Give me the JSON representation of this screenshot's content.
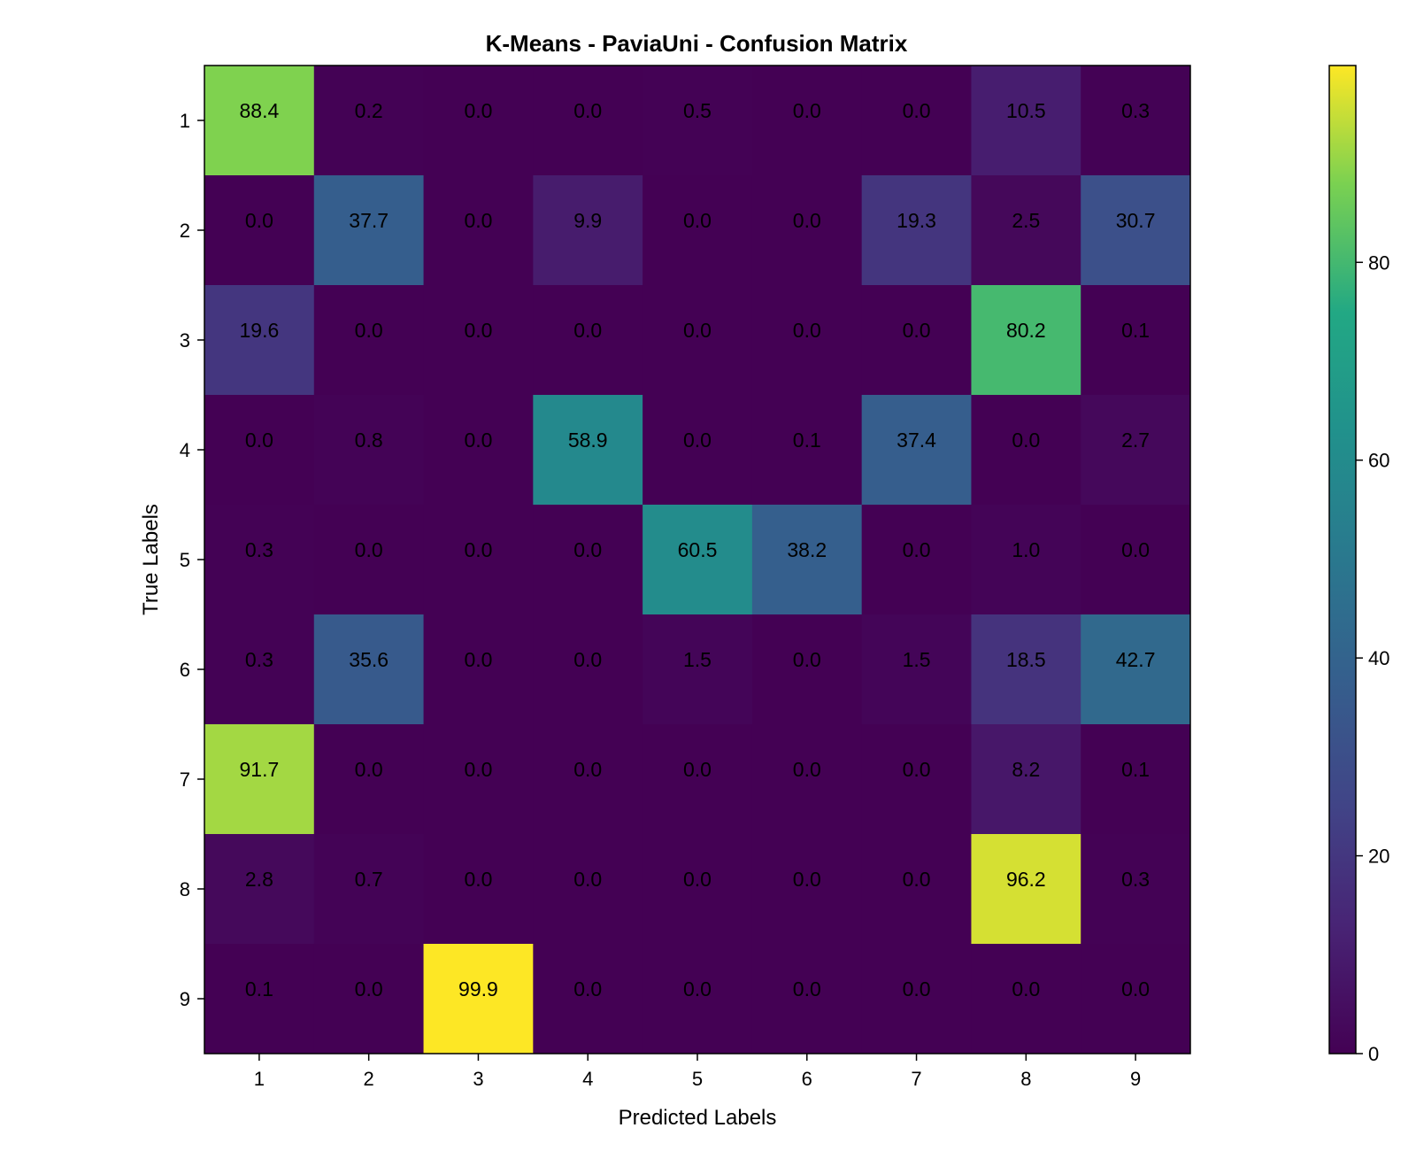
{
  "chart_data": {
    "type": "heatmap",
    "title": "K-Means - PaviaUni - Confusion Matrix",
    "xlabel": "Predicted Labels",
    "ylabel": "True Labels",
    "x_categories": [
      "1",
      "2",
      "3",
      "4",
      "5",
      "6",
      "7",
      "8",
      "9"
    ],
    "y_categories": [
      "1",
      "2",
      "3",
      "4",
      "5",
      "6",
      "7",
      "8",
      "9"
    ],
    "values": [
      [
        "88.4",
        "0.2",
        "0.0",
        "0.0",
        "0.5",
        "0.0",
        "0.0",
        "10.5",
        "0.3"
      ],
      [
        "0.0",
        "37.7",
        "0.0",
        "9.9",
        "0.0",
        "0.0",
        "19.3",
        "2.5",
        "30.7"
      ],
      [
        "19.6",
        "0.0",
        "0.0",
        "0.0",
        "0.0",
        "0.0",
        "0.0",
        "80.2",
        "0.1"
      ],
      [
        "0.0",
        "0.8",
        "0.0",
        "58.9",
        "0.0",
        "0.1",
        "37.4",
        "0.0",
        "2.7"
      ],
      [
        "0.3",
        "0.0",
        "0.0",
        "0.0",
        "60.5",
        "38.2",
        "0.0",
        "1.0",
        "0.0"
      ],
      [
        "0.3",
        "35.6",
        "0.0",
        "0.0",
        "1.5",
        "0.0",
        "1.5",
        "18.5",
        "42.7"
      ],
      [
        "91.7",
        "0.0",
        "0.0",
        "0.0",
        "0.0",
        "0.0",
        "0.0",
        "8.2",
        "0.1"
      ],
      [
        "2.8",
        "0.7",
        "0.0",
        "0.0",
        "0.0",
        "0.0",
        "0.0",
        "96.2",
        "0.3"
      ],
      [
        "0.1",
        "0.0",
        "99.9",
        "0.0",
        "0.0",
        "0.0",
        "0.0",
        "0.0",
        "0.0"
      ]
    ],
    "colormap": "viridis",
    "color_range": [
      0,
      99.9
    ],
    "colorbar": {
      "ticks": [
        "0",
        "20",
        "40",
        "60",
        "80"
      ],
      "placement": "right"
    },
    "grid": false
  }
}
